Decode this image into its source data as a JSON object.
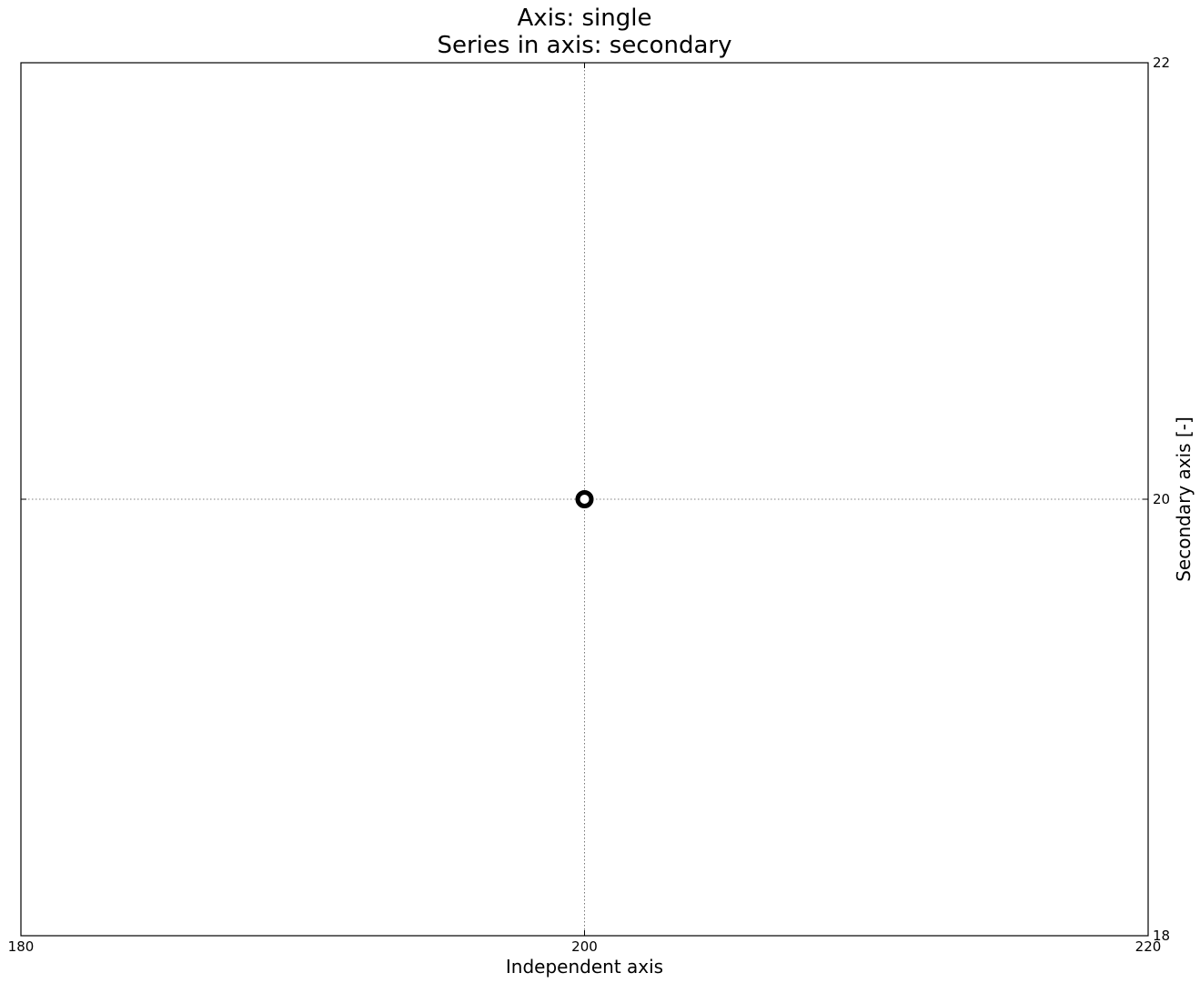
{
  "chart_data": {
    "type": "scatter",
    "title": "Axis: single",
    "subtitle": "Series in axis: secondary",
    "xlabel": "Independent axis",
    "ylabel": "Secondary axis [-]",
    "y_axis_side": "right",
    "xlim": [
      180,
      220
    ],
    "ylim": [
      18,
      22
    ],
    "x_ticks": [
      180,
      200,
      220
    ],
    "y_ticks": [
      18,
      20,
      22
    ],
    "x_tick_labels": [
      "180",
      "200",
      "220"
    ],
    "y_tick_labels": [
      "18",
      "20",
      "22"
    ],
    "grid": true,
    "grid_style": "dotted",
    "series": [
      {
        "x": [
          200
        ],
        "y": [
          20
        ],
        "marker": "hollow-circle",
        "color": "#000000"
      }
    ]
  }
}
